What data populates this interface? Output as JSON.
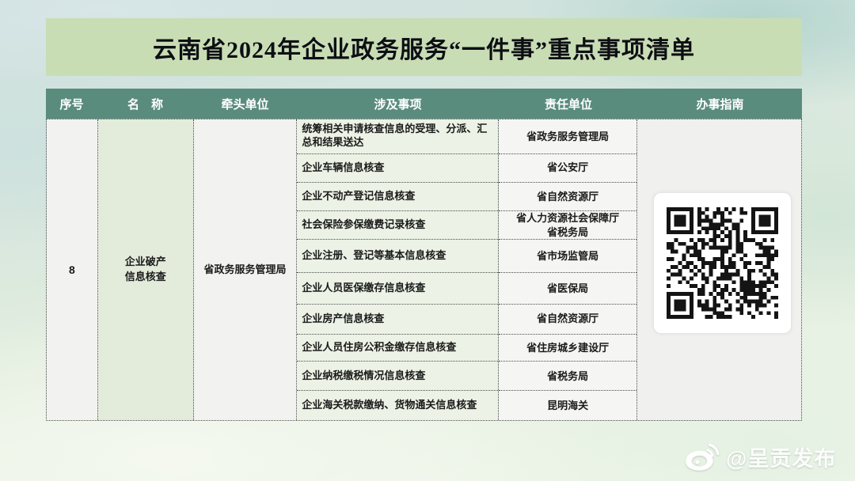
{
  "page": {
    "title": "云南省2024年企业政务服务“一件事”重点事项清单",
    "watermark": "@呈贡发布"
  },
  "colors": {
    "banner_bg": "#c9ddb5",
    "header_bg": "#5a8c7d",
    "name_cell_bg": "#e3ecdb",
    "matter_cell_bg": "#ecf2e5",
    "qr_fg": "#141414"
  },
  "table": {
    "headers": [
      "序号",
      "名　称",
      "牵头单位",
      "涉及事项",
      "责任单位",
      "办事指南"
    ],
    "group": {
      "seq": "8",
      "name": "企业破产\n信息核查",
      "lead_unit": "省政务服务管理局"
    },
    "rows": [
      {
        "matter": "统筹相关申请核查信息的受理、分派、汇总和结果送达",
        "unit": "省政务服务管理局"
      },
      {
        "matter": "企业车辆信息核查",
        "unit": "省公安厅"
      },
      {
        "matter": "企业不动产登记信息核查",
        "unit": "省自然资源厅"
      },
      {
        "matter": "社会保险参保缴费记录核查",
        "unit": "省人力资源社会保障厅\n省税务局"
      },
      {
        "matter": "企业注册、登记等基本信息核查",
        "unit": "省市场监管局"
      },
      {
        "matter": "企业人员医保缴存信息核查",
        "unit": "省医保局"
      },
      {
        "matter": "企业房产信息核查",
        "unit": "省自然资源厅"
      },
      {
        "matter": "企业人员住房公积金缴存信息核查",
        "unit": "省住房城乡建设厅"
      },
      {
        "matter": "企业纳税缴税情况信息核查",
        "unit": "省税务局"
      },
      {
        "matter": "企业海关税款缴纳、货物通关信息核查",
        "unit": "昆明海关"
      }
    ],
    "guide": {
      "content": "qr-code"
    }
  }
}
